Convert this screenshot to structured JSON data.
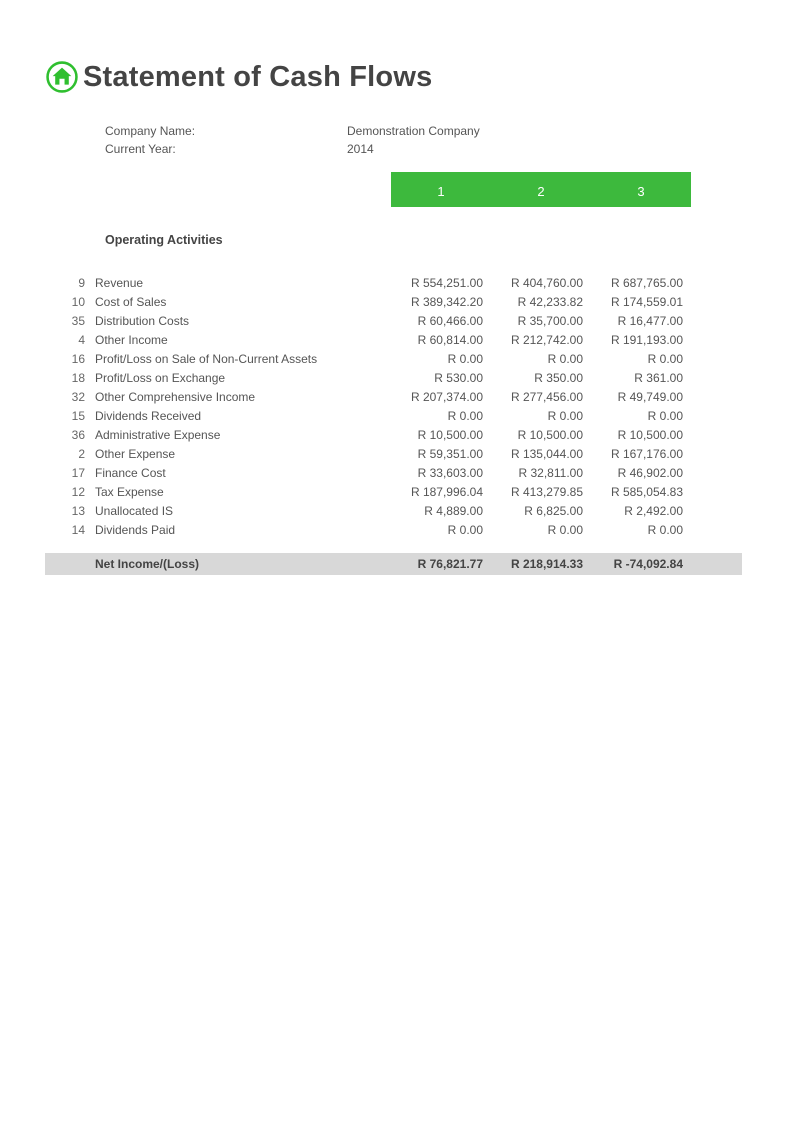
{
  "title": "Statement of Cash Flows",
  "colors": {
    "accent_green": "#3db93d",
    "icon_green": "#2fbf2f",
    "total_bg": "#d8d8d8",
    "negative": "#e62020",
    "text": "#444444"
  },
  "meta": {
    "company_label": "Company Name:",
    "company_value": "Demonstration Company",
    "year_label": "Current Year:",
    "year_value": "2014"
  },
  "periods": [
    "1",
    "2",
    "3"
  ],
  "section_title": "Operating Activities",
  "rows": [
    {
      "id": "9",
      "label": "Revenue",
      "vals": [
        "R 554,251.00",
        "R 404,760.00",
        "R 687,765.00"
      ]
    },
    {
      "id": "10",
      "label": "Cost of Sales",
      "vals": [
        "R 389,342.20",
        "R 42,233.82",
        "R 174,559.01"
      ]
    },
    {
      "id": "35",
      "label": "Distribution Costs",
      "vals": [
        "R 60,466.00",
        "R 35,700.00",
        "R 16,477.00"
      ]
    },
    {
      "id": "4",
      "label": "Other Income",
      "vals": [
        "R 60,814.00",
        "R 212,742.00",
        "R 191,193.00"
      ]
    },
    {
      "id": "16",
      "label": "Profit/Loss on Sale of Non-Current Assets",
      "vals": [
        "R 0.00",
        "R 0.00",
        "R 0.00"
      ]
    },
    {
      "id": "18",
      "label": "Profit/Loss on Exchange",
      "vals": [
        "R 530.00",
        "R 350.00",
        "R 361.00"
      ]
    },
    {
      "id": "32",
      "label": "Other Comprehensive Income",
      "vals": [
        "R 207,374.00",
        "R 277,456.00",
        "R 49,749.00"
      ]
    },
    {
      "id": "15",
      "label": "Dividends Received",
      "vals": [
        "R 0.00",
        "R 0.00",
        "R 0.00"
      ]
    },
    {
      "id": "36",
      "label": "Administrative Expense",
      "vals": [
        "R 10,500.00",
        "R 10,500.00",
        "R 10,500.00"
      ]
    },
    {
      "id": "2",
      "label": "Other Expense",
      "vals": [
        "R 59,351.00",
        "R 135,044.00",
        "R 167,176.00"
      ]
    },
    {
      "id": "17",
      "label": "Finance Cost",
      "vals": [
        "R 33,603.00",
        "R 32,811.00",
        "R 46,902.00"
      ]
    },
    {
      "id": "12",
      "label": "Tax Expense",
      "vals": [
        "R 187,996.04",
        "R 413,279.85",
        "R 585,054.83"
      ]
    },
    {
      "id": "13",
      "label": "Unallocated IS",
      "vals": [
        "R 4,889.00",
        "R 6,825.00",
        "R 2,492.00"
      ]
    },
    {
      "id": "14",
      "label": "Dividends Paid",
      "vals": [
        "R 0.00",
        "R 0.00",
        "R 0.00"
      ]
    }
  ],
  "total": {
    "label": "Net Income/(Loss)",
    "vals": [
      {
        "text": "R 76,821.77",
        "negative": false
      },
      {
        "text": "R 218,914.33",
        "negative": false
      },
      {
        "text": "R -74,092.84",
        "negative": true
      }
    ]
  }
}
